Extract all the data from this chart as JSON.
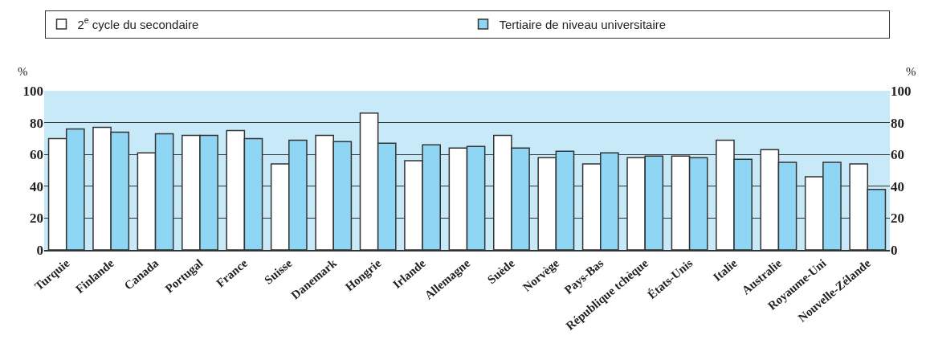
{
  "chart_data": {
    "type": "bar",
    "categories": [
      "Turquie",
      "Finlande",
      "Canada",
      "Portugal",
      "France",
      "Suisse",
      "Danemark",
      "Hongrie",
      "Irlande",
      "Allemagne",
      "Suède",
      "Norvège",
      "Pays-Bas",
      "République tchèque",
      "États-Unis",
      "Italie",
      "Australie",
      "Royaume-Uni",
      "Nouvelle-Zélande"
    ],
    "series": [
      {
        "name": "2$^{e}$ cycle du secondaire",
        "color": "#ffffff",
        "values": [
          70,
          77,
          61,
          72,
          75,
          54,
          72,
          86,
          56,
          64,
          72,
          58,
          54,
          58,
          59,
          69,
          63,
          46,
          54
        ]
      },
      {
        "name": "Tertiaire de niveau universitaire",
        "color": "#8fd6f5",
        "values": [
          76,
          74,
          73,
          72,
          70,
          69,
          68,
          67,
          66,
          65,
          64,
          62,
          61,
          59,
          58,
          57,
          55,
          55,
          38
        ]
      }
    ],
    "ylim": [
      0,
      100
    ],
    "yticks": [
      0,
      20,
      40,
      60,
      80,
      100
    ],
    "y2lim": [
      0,
      100
    ],
    "y2ticks": [
      0,
      20,
      40,
      60,
      80,
      100
    ],
    "grid": "y",
    "legend": "top",
    "annotations": [
      "%",
      "%"
    ]
  }
}
